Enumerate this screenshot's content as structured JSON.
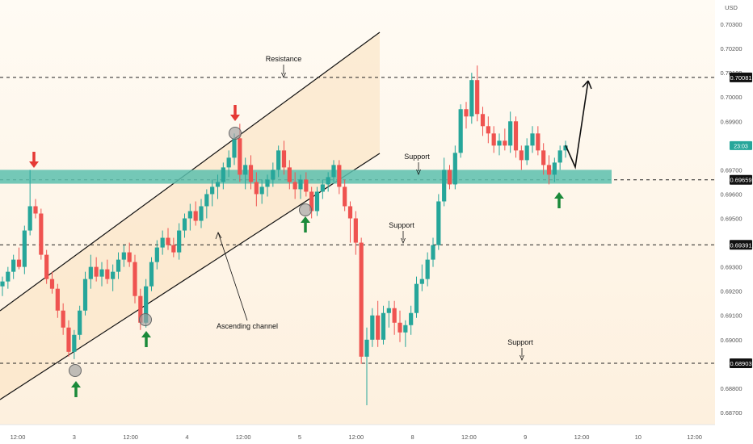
{
  "chart_data": {
    "type": "candlestick",
    "currency": "USD",
    "ylim": [
      0.6865,
      0.704
    ],
    "price_axis_ticks": [
      0.703,
      0.702,
      0.701,
      0.7,
      0.699,
      0.697,
      0.696,
      0.695,
      0.693,
      0.692,
      0.691,
      0.69,
      0.688,
      0.687
    ],
    "time_axis_labels": [
      "12:00",
      "3",
      "12:00",
      "4",
      "12:00",
      "5",
      "12:00",
      "8",
      "12:00",
      "9",
      "12:00",
      "10",
      "12:00"
    ],
    "levels": [
      {
        "price": 0.70081,
        "label": "0.70081",
        "annotation": "Resistance"
      },
      {
        "price": 0.69659,
        "label": "0.69659",
        "annotation": "Support"
      },
      {
        "price": 0.69391,
        "label": "0.69391",
        "annotation": "Support"
      },
      {
        "price": 0.68903,
        "label": "0.68903",
        "annotation": "Support"
      }
    ],
    "current_price_label": "23:03",
    "support_zone": [
      0.69643,
      0.697
    ],
    "channel_label": "Ascending channel",
    "colors": {
      "up": "#26a69a",
      "down": "#ef5350",
      "zone": "#5cbfae",
      "channel": "#fbe6c8",
      "current": "#26a69a"
    },
    "candles": [
      [
        0.6922,
        0.6926,
        0.6918,
        0.6924
      ],
      [
        0.6924,
        0.693,
        0.6921,
        0.6928
      ],
      [
        0.6928,
        0.6935,
        0.6925,
        0.6933
      ],
      [
        0.6933,
        0.6938,
        0.6929,
        0.693
      ],
      [
        0.693,
        0.6947,
        0.6927,
        0.6945
      ],
      [
        0.6945,
        0.697,
        0.6943,
        0.6955
      ],
      [
        0.6955,
        0.6958,
        0.695,
        0.6952
      ],
      [
        0.6952,
        0.6954,
        0.6933,
        0.6935
      ],
      [
        0.6935,
        0.6937,
        0.6923,
        0.6925
      ],
      [
        0.6925,
        0.6928,
        0.6919,
        0.6921
      ],
      [
        0.6921,
        0.6923,
        0.6909,
        0.6912
      ],
      [
        0.6912,
        0.6915,
        0.6902,
        0.6905
      ],
      [
        0.6905,
        0.6908,
        0.6893,
        0.6895
      ],
      [
        0.6895,
        0.6904,
        0.6892,
        0.6902
      ],
      [
        0.6902,
        0.6914,
        0.69,
        0.6912
      ],
      [
        0.6912,
        0.6928,
        0.691,
        0.6925
      ],
      [
        0.6925,
        0.6935,
        0.6921,
        0.693
      ],
      [
        0.693,
        0.6934,
        0.6924,
        0.6926
      ],
      [
        0.6926,
        0.6932,
        0.6922,
        0.6929
      ],
      [
        0.6929,
        0.6933,
        0.6923,
        0.6925
      ],
      [
        0.6925,
        0.6931,
        0.692,
        0.6928
      ],
      [
        0.6928,
        0.6936,
        0.6925,
        0.6933
      ],
      [
        0.6933,
        0.6939,
        0.693,
        0.6936
      ],
      [
        0.6936,
        0.694,
        0.693,
        0.6932
      ],
      [
        0.6932,
        0.6935,
        0.6915,
        0.6918
      ],
      [
        0.6918,
        0.6921,
        0.6904,
        0.6907
      ],
      [
        0.6907,
        0.6925,
        0.6905,
        0.6922
      ],
      [
        0.6922,
        0.6934,
        0.692,
        0.6932
      ],
      [
        0.6932,
        0.6941,
        0.6929,
        0.6938
      ],
      [
        0.6938,
        0.6945,
        0.6935,
        0.6942
      ],
      [
        0.6942,
        0.6946,
        0.6937,
        0.6939
      ],
      [
        0.6939,
        0.6942,
        0.6934,
        0.6936
      ],
      [
        0.6936,
        0.6948,
        0.6933,
        0.6945
      ],
      [
        0.6945,
        0.6952,
        0.6942,
        0.695
      ],
      [
        0.695,
        0.6956,
        0.6945,
        0.6953
      ],
      [
        0.6953,
        0.6957,
        0.6947,
        0.6949
      ],
      [
        0.6949,
        0.6958,
        0.6946,
        0.6955
      ],
      [
        0.6955,
        0.6962,
        0.695,
        0.696
      ],
      [
        0.696,
        0.6966,
        0.6955,
        0.6963
      ],
      [
        0.6963,
        0.6968,
        0.6958,
        0.6965
      ],
      [
        0.6965,
        0.6973,
        0.6962,
        0.6971
      ],
      [
        0.6971,
        0.6978,
        0.6967,
        0.6975
      ],
      [
        0.6975,
        0.6985,
        0.6972,
        0.6983
      ],
      [
        0.6983,
        0.6989,
        0.6965,
        0.6968
      ],
      [
        0.6968,
        0.6975,
        0.6962,
        0.6972
      ],
      [
        0.6972,
        0.6976,
        0.6962,
        0.6965
      ],
      [
        0.6965,
        0.6969,
        0.6955,
        0.696
      ],
      [
        0.696,
        0.6966,
        0.6956,
        0.6963
      ],
      [
        0.6963,
        0.6968,
        0.6959,
        0.6966
      ],
      [
        0.6966,
        0.6973,
        0.6963,
        0.697
      ],
      [
        0.697,
        0.698,
        0.6967,
        0.6978
      ],
      [
        0.6978,
        0.6982,
        0.6968,
        0.6971
      ],
      [
        0.6971,
        0.6974,
        0.6962,
        0.6965
      ],
      [
        0.6965,
        0.6969,
        0.6958,
        0.6962
      ],
      [
        0.6962,
        0.6968,
        0.6958,
        0.6966
      ],
      [
        0.6966,
        0.6969,
        0.6959,
        0.6961
      ],
      [
        0.6961,
        0.6963,
        0.695,
        0.6953
      ],
      [
        0.6953,
        0.6963,
        0.6951,
        0.6961
      ],
      [
        0.6961,
        0.6966,
        0.6958,
        0.6964
      ],
      [
        0.6964,
        0.6969,
        0.6961,
        0.6967
      ],
      [
        0.6967,
        0.6974,
        0.6965,
        0.6972
      ],
      [
        0.6972,
        0.6974,
        0.696,
        0.6963
      ],
      [
        0.6963,
        0.6966,
        0.6953,
        0.6955
      ],
      [
        0.6955,
        0.6957,
        0.694,
        0.695
      ],
      [
        0.695,
        0.6953,
        0.6935,
        0.694
      ],
      [
        0.694,
        0.6942,
        0.689,
        0.6893
      ],
      [
        0.6893,
        0.6905,
        0.6873,
        0.69
      ],
      [
        0.69,
        0.6913,
        0.6897,
        0.691
      ],
      [
        0.691,
        0.6916,
        0.6897,
        0.69
      ],
      [
        0.69,
        0.6914,
        0.6898,
        0.6911
      ],
      [
        0.6911,
        0.6916,
        0.6905,
        0.6913
      ],
      [
        0.6913,
        0.6916,
        0.6902,
        0.6907
      ],
      [
        0.6907,
        0.6912,
        0.6899,
        0.6903
      ],
      [
        0.6903,
        0.6908,
        0.6897,
        0.6906
      ],
      [
        0.6906,
        0.6914,
        0.6902,
        0.6911
      ],
      [
        0.6911,
        0.6926,
        0.6909,
        0.6923
      ],
      [
        0.6923,
        0.6931,
        0.692,
        0.6925
      ],
      [
        0.6925,
        0.6936,
        0.6922,
        0.6933
      ],
      [
        0.6933,
        0.6942,
        0.693,
        0.6939
      ],
      [
        0.6939,
        0.696,
        0.6937,
        0.6957
      ],
      [
        0.6957,
        0.6975,
        0.6955,
        0.697
      ],
      [
        0.697,
        0.6972,
        0.6962,
        0.6964
      ],
      [
        0.6964,
        0.698,
        0.6962,
        0.6977
      ],
      [
        0.6977,
        0.6997,
        0.6975,
        0.6995
      ],
      [
        0.6995,
        0.6998,
        0.6987,
        0.6992
      ],
      [
        0.6992,
        0.701,
        0.6989,
        0.7007
      ],
      [
        0.7007,
        0.7013,
        0.699,
        0.6993
      ],
      [
        0.6993,
        0.6996,
        0.6984,
        0.6988
      ],
      [
        0.6988,
        0.6992,
        0.6981,
        0.6985
      ],
      [
        0.6985,
        0.6988,
        0.6977,
        0.698
      ],
      [
        0.698,
        0.6985,
        0.6976,
        0.6982
      ],
      [
        0.6982,
        0.6987,
        0.6978,
        0.698
      ],
      [
        0.698,
        0.6994,
        0.6977,
        0.699
      ],
      [
        0.699,
        0.6992,
        0.6975,
        0.6978
      ],
      [
        0.6978,
        0.698,
        0.697,
        0.6974
      ],
      [
        0.6974,
        0.6983,
        0.6972,
        0.698
      ],
      [
        0.698,
        0.6988,
        0.6977,
        0.6985
      ],
      [
        0.6985,
        0.6988,
        0.6976,
        0.6978
      ],
      [
        0.6978,
        0.6981,
        0.6968,
        0.6972
      ],
      [
        0.6972,
        0.6976,
        0.6964,
        0.6968
      ],
      [
        0.6968,
        0.6975,
        0.6965,
        0.6973
      ],
      [
        0.6973,
        0.698,
        0.697,
        0.6978
      ],
      [
        0.6978,
        0.6982,
        0.6975,
        0.698
      ]
    ]
  }
}
